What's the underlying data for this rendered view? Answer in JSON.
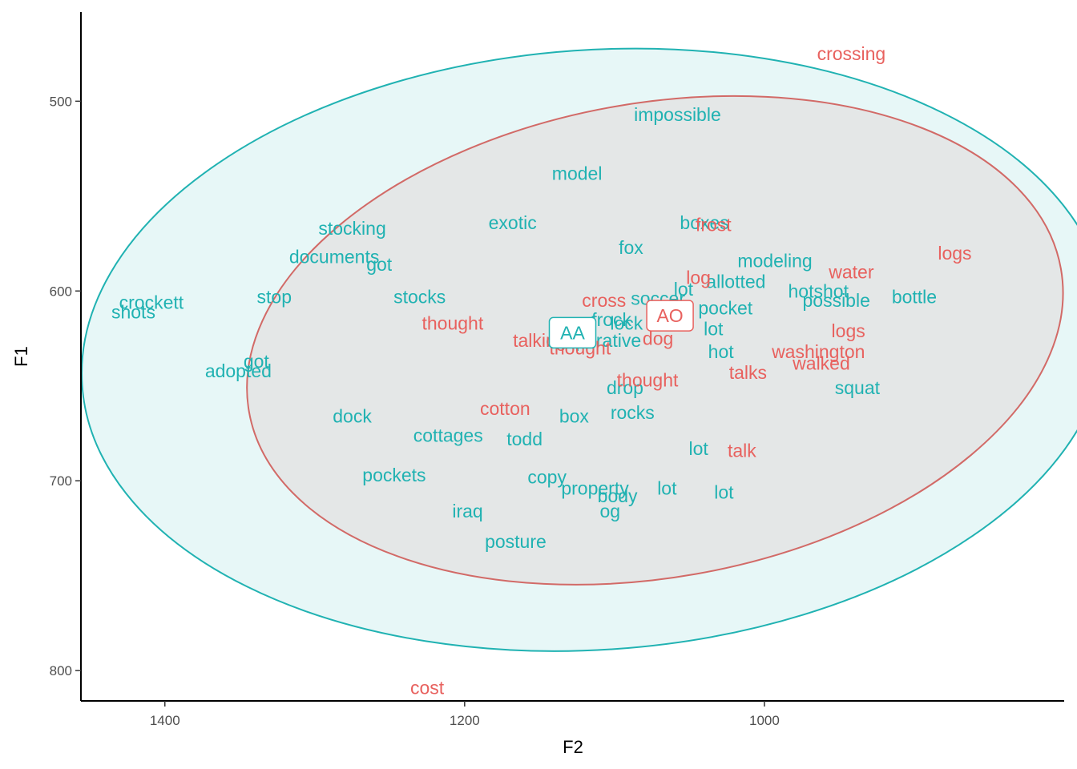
{
  "chart_data": {
    "type": "scatter",
    "title": "",
    "xlabel": "F2",
    "ylabel": "F1",
    "x_reversed": true,
    "y_reversed": true,
    "xlim": [
      1456,
      800
    ],
    "ylim": [
      453,
      816
    ],
    "x_ticks": [
      1400,
      1200,
      1000
    ],
    "y_ticks": [
      500,
      600,
      700,
      800
    ],
    "x_tick_labels": [
      "1400",
      "1200",
      "1000"
    ],
    "y_tick_labels": [
      "500",
      "600",
      "700",
      "800"
    ],
    "grid": false,
    "legend": "none",
    "colors": {
      "AO": "#e8615e",
      "AA": "#20b2b2"
    },
    "series": [
      {
        "name": "AO",
        "mean_label": "AO",
        "mean": [
          1063,
          613
        ],
        "ellipse": {
          "center": [
            1073,
            626
          ],
          "rx": 275,
          "ry": 125,
          "rotation_deg": -10
        },
        "points": [
          {
            "label": "crossing",
            "x": 942,
            "y": 475
          },
          {
            "label": "frost",
            "x": 1034,
            "y": 565
          },
          {
            "label": "logs",
            "x": 873,
            "y": 580
          },
          {
            "label": "water",
            "x": 942,
            "y": 590
          },
          {
            "label": "log",
            "x": 1044,
            "y": 593
          },
          {
            "label": "cross",
            "x": 1107,
            "y": 605
          },
          {
            "label": "thought",
            "x": 1208,
            "y": 617
          },
          {
            "label": "logs",
            "x": 944,
            "y": 621
          },
          {
            "label": "talking",
            "x": 1150,
            "y": 626
          },
          {
            "label": "thought",
            "x": 1123,
            "y": 630
          },
          {
            "label": "dog",
            "x": 1071,
            "y": 625
          },
          {
            "label": "washington",
            "x": 964,
            "y": 632
          },
          {
            "label": "walked",
            "x": 962,
            "y": 638
          },
          {
            "label": "talks",
            "x": 1011,
            "y": 643
          },
          {
            "label": "thought",
            "x": 1078,
            "y": 647
          },
          {
            "label": "cotton",
            "x": 1173,
            "y": 662
          },
          {
            "label": "talk",
            "x": 1015,
            "y": 684
          },
          {
            "label": "cost",
            "x": 1225,
            "y": 809
          }
        ]
      },
      {
        "name": "AA",
        "mean_label": "AA",
        "mean": [
          1128,
          622
        ],
        "ellipse": {
          "center": [
            1113,
            631
          ],
          "rx": 343,
          "ry": 158,
          "rotation_deg": -4
        },
        "points": [
          {
            "label": "impossible",
            "x": 1058,
            "y": 507
          },
          {
            "label": "model",
            "x": 1125,
            "y": 538
          },
          {
            "label": "stocking",
            "x": 1275,
            "y": 567
          },
          {
            "label": "exotic",
            "x": 1168,
            "y": 564
          },
          {
            "label": "boxes",
            "x": 1040,
            "y": 564
          },
          {
            "label": "documents",
            "x": 1287,
            "y": 582
          },
          {
            "label": "got",
            "x": 1257,
            "y": 586
          },
          {
            "label": "fox",
            "x": 1089,
            "y": 577
          },
          {
            "label": "modeling",
            "x": 993,
            "y": 584
          },
          {
            "label": "allotted",
            "x": 1019,
            "y": 595
          },
          {
            "label": "lot",
            "x": 1054,
            "y": 599
          },
          {
            "label": "hotshot",
            "x": 964,
            "y": 600
          },
          {
            "label": "stocks",
            "x": 1230,
            "y": 603
          },
          {
            "label": "stop",
            "x": 1327,
            "y": 603
          },
          {
            "label": "crockett",
            "x": 1409,
            "y": 606
          },
          {
            "label": "shots",
            "x": 1421,
            "y": 611
          },
          {
            "label": "soccer",
            "x": 1071,
            "y": 604
          },
          {
            "label": "pocket",
            "x": 1026,
            "y": 609
          },
          {
            "label": "possible",
            "x": 952,
            "y": 605
          },
          {
            "label": "bottle",
            "x": 900,
            "y": 603
          },
          {
            "label": "frock",
            "x": 1102,
            "y": 615
          },
          {
            "label": "lock",
            "x": 1092,
            "y": 617
          },
          {
            "label": "lot",
            "x": 1034,
            "y": 620
          },
          {
            "label": "cooperative",
            "x": 1114,
            "y": 626
          },
          {
            "label": "hot",
            "x": 1029,
            "y": 632
          },
          {
            "label": "got",
            "x": 1339,
            "y": 637
          },
          {
            "label": "adopted",
            "x": 1351,
            "y": 642
          },
          {
            "label": "drop",
            "x": 1093,
            "y": 651
          },
          {
            "label": "squat",
            "x": 938,
            "y": 651
          },
          {
            "label": "dock",
            "x": 1275,
            "y": 666
          },
          {
            "label": "box",
            "x": 1127,
            "y": 666
          },
          {
            "label": "rocks",
            "x": 1088,
            "y": 664
          },
          {
            "label": "cottages",
            "x": 1211,
            "y": 676
          },
          {
            "label": "todd",
            "x": 1160,
            "y": 678
          },
          {
            "label": "lot",
            "x": 1044,
            "y": 683
          },
          {
            "label": "pockets",
            "x": 1247,
            "y": 697
          },
          {
            "label": "copy",
            "x": 1145,
            "y": 698
          },
          {
            "label": "property",
            "x": 1113,
            "y": 704
          },
          {
            "label": "body",
            "x": 1098,
            "y": 708
          },
          {
            "label": "lot",
            "x": 1065,
            "y": 704
          },
          {
            "label": "lot",
            "x": 1027,
            "y": 706
          },
          {
            "label": "iraq",
            "x": 1198,
            "y": 716
          },
          {
            "label": "og",
            "x": 1103,
            "y": 716
          },
          {
            "label": "posture",
            "x": 1166,
            "y": 732
          }
        ]
      }
    ]
  }
}
